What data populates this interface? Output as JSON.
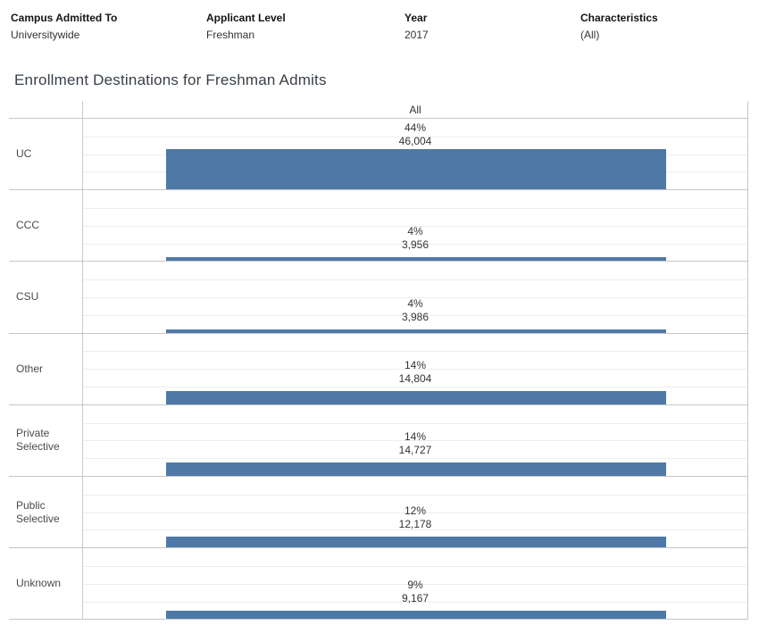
{
  "filters": [
    {
      "label": "Campus Admitted To",
      "value": "Universitywide"
    },
    {
      "label": "Applicant Level",
      "value": "Freshman"
    },
    {
      "label": "Year",
      "value": "2017"
    },
    {
      "label": "Characteristics",
      "value": "(All)"
    }
  ],
  "chart_data": {
    "type": "bar",
    "title": "Enrollment Destinations for Freshman Admits",
    "column_header": "All",
    "categories": [
      "UC",
      "CCC",
      "CSU",
      "Other",
      "Private Selective",
      "Public Selective",
      "Unknown"
    ],
    "values": [
      46004,
      3956,
      3986,
      14804,
      14727,
      12178,
      9167
    ],
    "percent_labels": [
      "44%",
      "4%",
      "4%",
      "14%",
      "14%",
      "12%",
      "9%"
    ],
    "count_labels": [
      "46,004",
      "3,956",
      "3,986",
      "14,804",
      "14,727",
      "12,178",
      "9,167"
    ],
    "xlabel": "",
    "ylabel": "",
    "ylim": [
      0,
      80000
    ],
    "gridline_interval": 20000,
    "legend_position": "none",
    "orientation": "value encoded as bar thickness per row",
    "bar_color": "#4e79a7"
  }
}
